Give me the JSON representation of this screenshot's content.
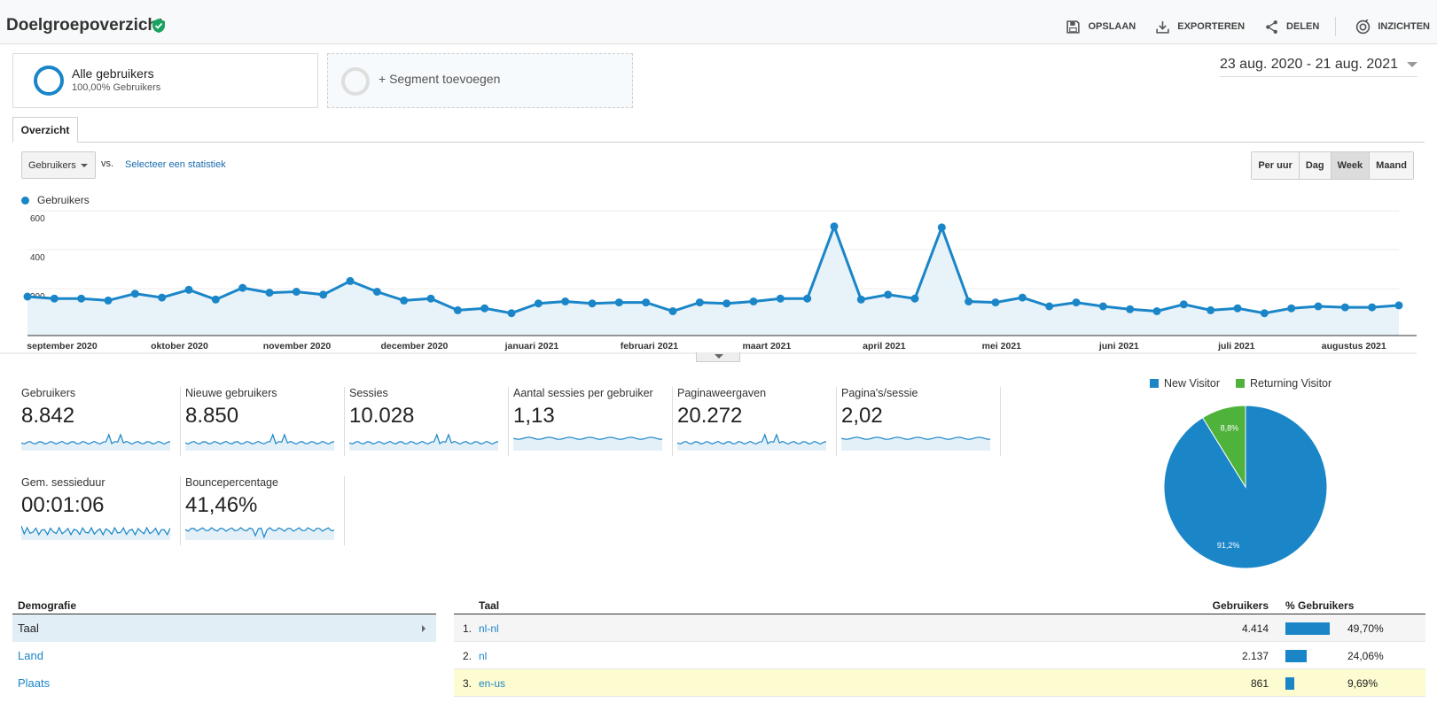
{
  "header": {
    "title": "Doelgroepoverzicht",
    "actions": [
      {
        "label": "OPSLAAN",
        "icon": "save-icon"
      },
      {
        "label": "EXPORTEREN",
        "icon": "download-icon"
      },
      {
        "label": "DELEN",
        "icon": "share-icon"
      },
      {
        "label": "INZICHTEN",
        "icon": "insights-icon"
      }
    ]
  },
  "segments": {
    "active_title": "Alle gebruikers",
    "active_sub": "100,00% Gebruikers",
    "add_label": "+ Segment toevoegen"
  },
  "date_range": "23 aug. 2020 - 21 aug. 2021",
  "tabs": {
    "overview": "Overzicht"
  },
  "controls": {
    "metric_select": "Gebruikers",
    "vs": "vs.",
    "select_stat": "Selecteer een statistiek",
    "granularity": [
      "Per uur",
      "Dag",
      "Week",
      "Maand"
    ],
    "active_granularity": "Week"
  },
  "chart_data": {
    "type": "line",
    "series": [
      {
        "name": "Gebruikers",
        "values": [
          200,
          190,
          190,
          180,
          215,
          195,
          235,
          185,
          245,
          220,
          225,
          210,
          280,
          225,
          180,
          190,
          130,
          140,
          115,
          165,
          175,
          165,
          170,
          170,
          125,
          170,
          165,
          175,
          190,
          190,
          560,
          185,
          210,
          190,
          555,
          175,
          170,
          195,
          150,
          170,
          150,
          135,
          125,
          160,
          130,
          140,
          115,
          140,
          150,
          145,
          145,
          155
        ]
      }
    ],
    "y_ticks": [
      600,
      400,
      200
    ],
    "ylim": [
      0,
      600
    ],
    "x_labels": [
      "september 2020",
      "oktober 2020",
      "november 2020",
      "december 2020",
      "januari 2021",
      "februari 2021",
      "maart 2021",
      "april 2021",
      "mei 2021",
      "juni 2021",
      "juli 2021",
      "augustus 2021"
    ],
    "color": "#1a86c8"
  },
  "metrics": [
    {
      "label": "Gebruikers",
      "value": "8.842"
    },
    {
      "label": "Nieuwe gebruikers",
      "value": "8.850"
    },
    {
      "label": "Sessies",
      "value": "10.028"
    },
    {
      "label": "Aantal sessies per gebruiker",
      "value": "1,13"
    },
    {
      "label": "Paginaweergaven",
      "value": "20.272"
    },
    {
      "label": "Pagina's/sessie",
      "value": "2,02"
    },
    {
      "label": "Gem. sessieduur",
      "value": "00:01:06"
    },
    {
      "label": "Bouncepercentage",
      "value": "41,46%"
    }
  ],
  "pie": {
    "legend": [
      {
        "name": "New Visitor",
        "color": "#1a86c8"
      },
      {
        "name": "Returning Visitor",
        "color": "#4fb23a"
      }
    ],
    "slices": [
      {
        "name": "New Visitor",
        "value": 91.2,
        "label": "91,2%"
      },
      {
        "name": "Returning Visitor",
        "value": 8.8,
        "label": "8,8%"
      }
    ]
  },
  "demography": {
    "heading": "Demografie",
    "items": [
      "Taal",
      "Land",
      "Plaats"
    ]
  },
  "table": {
    "headers": {
      "dimension": "Taal",
      "users": "Gebruikers",
      "pct": "% Gebruikers"
    },
    "rows": [
      {
        "num": "1.",
        "name": "nl-nl",
        "users": "4.414",
        "pct": "49,70%",
        "share": 0.497
      },
      {
        "num": "2.",
        "name": "nl",
        "users": "2.137",
        "pct": "24,06%",
        "share": 0.2406
      },
      {
        "num": "3.",
        "name": "en-us",
        "users": "861",
        "pct": "9,69%",
        "share": 0.0969
      }
    ]
  }
}
